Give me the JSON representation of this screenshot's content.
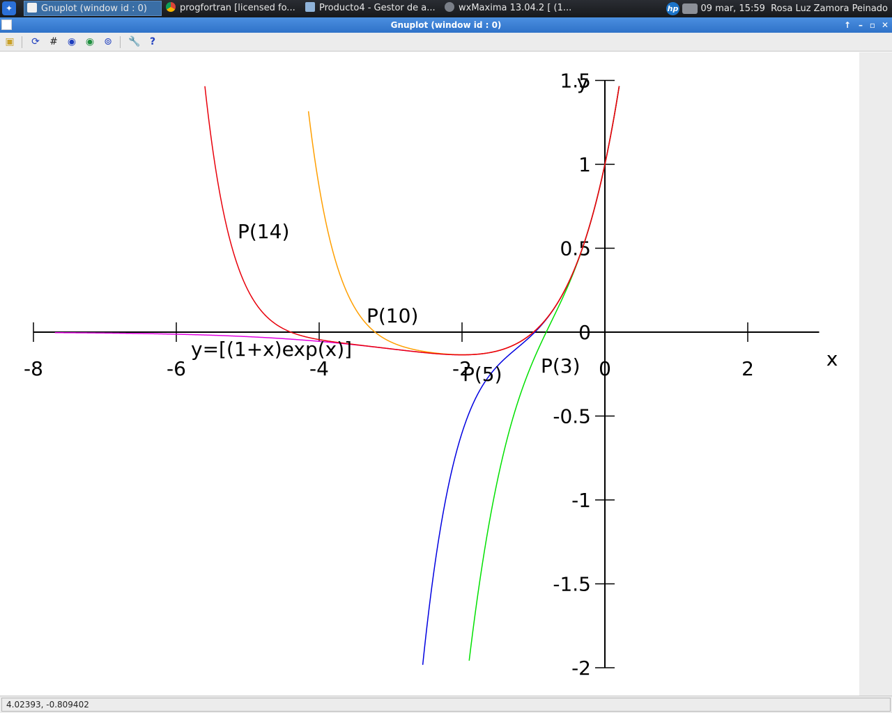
{
  "taskbar": {
    "tasks": [
      {
        "label": "Gnuplot (window id : 0)",
        "icon": "gnuplot-icon",
        "active": true
      },
      {
        "label": "progfortran [licensed fo...",
        "icon": "chrome-icon",
        "active": false
      },
      {
        "label": "Producto4 - Gestor de a...",
        "icon": "folder-icon",
        "active": false
      },
      {
        "label": "wxMaxima 13.04.2  [ (1...",
        "icon": "wxmaxima-icon",
        "active": false
      }
    ],
    "clock": "09 mar, 15:59",
    "user": "Rosa Luz Zamora Peinado"
  },
  "window": {
    "title": "Gnuplot (window id : 0)"
  },
  "toolbar": {
    "icons": [
      "copy-clipboard-icon",
      "replot-icon",
      "grid-icon",
      "zoom-previous-icon",
      "zoom-next-icon",
      "autoscale-icon",
      "options-icon",
      "help-icon"
    ]
  },
  "status": {
    "coordinates": "4.02393, -0.809402"
  },
  "colors": {
    "p14": "#e8000b",
    "p10": "#ff9f00",
    "p5": "#0000e0",
    "p3": "#00e000",
    "exact": "#e000e0"
  },
  "chart_data": {
    "type": "line",
    "xlabel": "x",
    "ylabel": "y",
    "xlim": [
      -8,
      3
    ],
    "ylim": [
      -2,
      1.5
    ],
    "x_ticks": [
      "-8",
      "-6",
      "-4",
      "-2",
      "0",
      "2"
    ],
    "y_ticks": [
      "1.5",
      "1",
      "0.5",
      "0",
      "-0.5",
      "-1",
      "-1.5",
      "-2"
    ],
    "series": [
      {
        "name": "P(14)",
        "degree": 14,
        "color": "#e8000b"
      },
      {
        "name": "P(10)",
        "degree": 10,
        "color": "#ff9f00"
      },
      {
        "name": "P(5)",
        "degree": 5,
        "color": "#0000e0"
      },
      {
        "name": "P(3)",
        "degree": 3,
        "color": "#00e000"
      },
      {
        "name": "y=[(1+x)exp(x)]",
        "degree": null,
        "color": "#e000e0"
      }
    ]
  }
}
